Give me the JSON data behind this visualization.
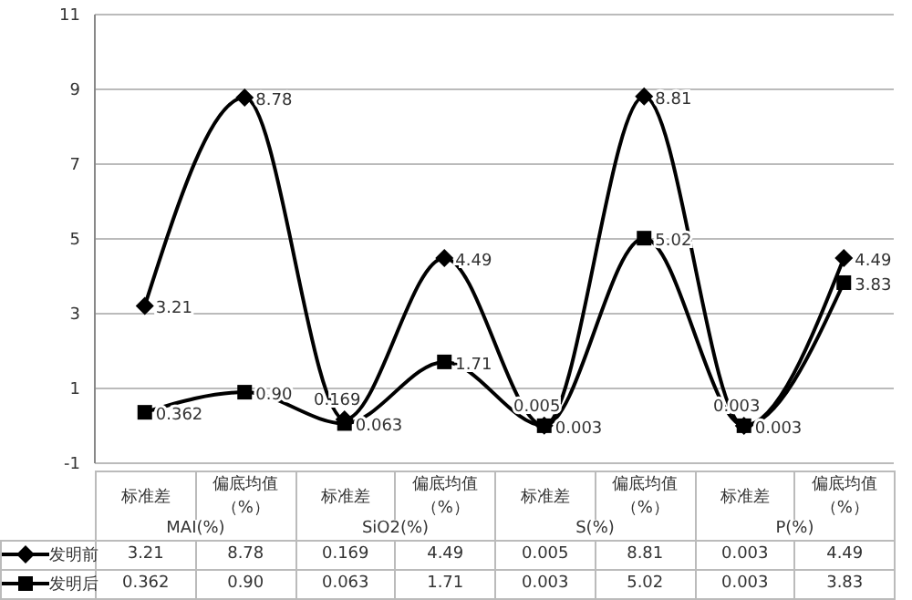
{
  "chart_data": {
    "type": "line",
    "categories": [
      "标准差",
      "偏底均值（%）",
      "标准差",
      "偏底均值（%）",
      "标准差",
      "偏底均值（%）",
      "标准差",
      "偏底均值（%）"
    ],
    "annotations": [
      "MAI(%)",
      "SiO2(%)",
      "S(%)",
      "P(%)"
    ],
    "series": [
      {
        "name": "发明前",
        "color": "#000000",
        "marker": "diamond",
        "values": [
          3.21,
          8.78,
          0.169,
          4.49,
          0.005,
          8.81,
          0.003,
          4.49
        ],
        "value_labels": [
          "3.21",
          "8.78",
          "0.169",
          "4.49",
          "0.005",
          "8.81",
          "0.003",
          "4.49"
        ]
      },
      {
        "name": "发明后",
        "color": "#000000",
        "marker": "square",
        "values": [
          0.362,
          0.9,
          0.063,
          1.71,
          0.003,
          5.02,
          0.003,
          3.83
        ],
        "value_labels": [
          "0.362",
          "0.90",
          "0.063",
          "1.71",
          "0.003",
          "5.02",
          "0.003",
          "3.83"
        ]
      }
    ],
    "ylim": [
      -1,
      11
    ],
    "yticks": [
      -1,
      1,
      3,
      5,
      7,
      9,
      11
    ],
    "grid": "y",
    "legend": "bottom",
    "line_style": "solid"
  }
}
